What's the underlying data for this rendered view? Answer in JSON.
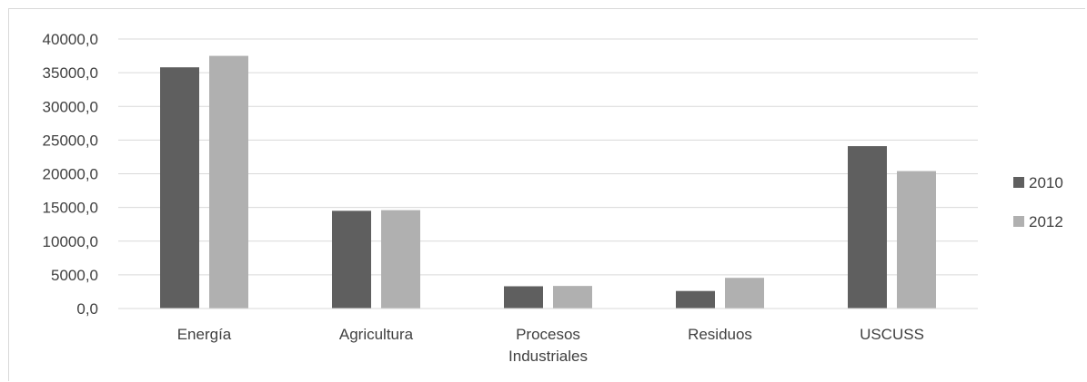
{
  "chart_data": {
    "type": "bar",
    "title": "",
    "xlabel": "",
    "ylabel": "",
    "categories": [
      [
        "Energía"
      ],
      [
        "Agricultura"
      ],
      [
        "Procesos",
        "Industriales"
      ],
      [
        "Residuos"
      ],
      [
        "USCUSS"
      ]
    ],
    "series": [
      {
        "name": "2010",
        "color": "#5f5f5f",
        "values": [
          35800,
          14500,
          3300,
          2600,
          24100
        ]
      },
      {
        "name": "2012",
        "color": "#b0b0b0",
        "values": [
          37500,
          14600,
          3350,
          4550,
          20400
        ]
      }
    ],
    "ylim": [
      0,
      40000
    ],
    "yticks": [
      0,
      5000,
      10000,
      15000,
      20000,
      25000,
      30000,
      35000,
      40000
    ],
    "ytick_labels": [
      "0,0",
      "5000,0",
      "10000,0",
      "15000,0",
      "20000,0",
      "25000,0",
      "30000,0",
      "35000,0",
      "40000,0"
    ],
    "grid": true,
    "legend": "right"
  }
}
